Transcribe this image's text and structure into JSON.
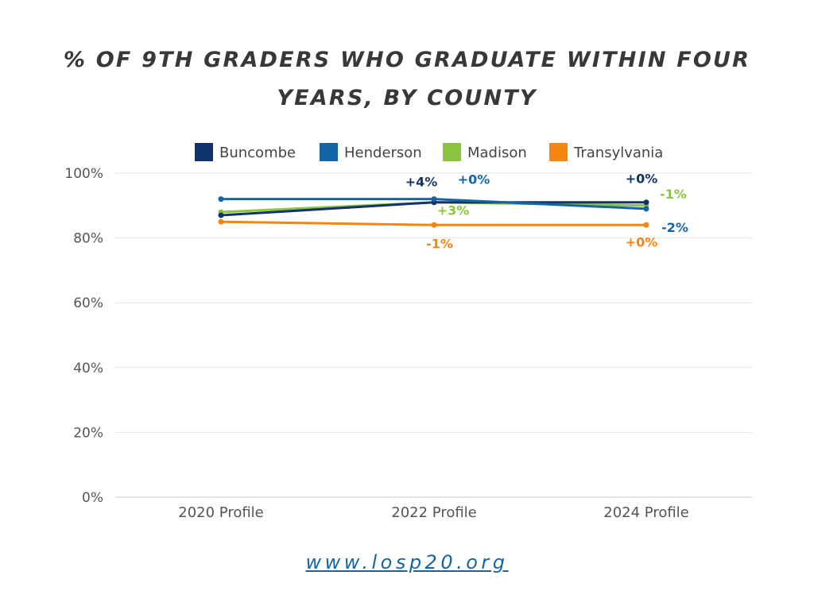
{
  "title": "% OF 9TH GRADERS WHO GRADUATE WITHIN FOUR YEARS, BY COUNTY",
  "footer": {
    "url_text": "www.losp20.org"
  },
  "chart_data": {
    "type": "line",
    "title": "% OF 9TH GRADERS WHO GRADUATE WITHIN FOUR YEARS, BY COUNTY",
    "xlabel": "",
    "ylabel": "",
    "categories": [
      "2020 Profile",
      "2022 Profile",
      "2024 Profile"
    ],
    "ylim": [
      0,
      100
    ],
    "yticks": [
      "0%",
      "20%",
      "40%",
      "60%",
      "80%",
      "100%"
    ],
    "ytick_values": [
      0,
      20,
      40,
      60,
      80,
      100
    ],
    "grid": true,
    "legend_position": "top",
    "series": [
      {
        "name": "Buncombe",
        "color": "#12326e",
        "values": [
          87,
          91,
          91
        ],
        "labels": [
          "",
          "+4%",
          "+0%"
        ]
      },
      {
        "name": "Henderson",
        "color": "#1565a6",
        "values": [
          92,
          92,
          89
        ],
        "labels": [
          "",
          "+0%",
          "-2%"
        ]
      },
      {
        "name": "Madison",
        "color": "#8bc53f",
        "values": [
          88,
          91,
          90
        ],
        "labels": [
          "",
          "+3%",
          "-1%"
        ]
      },
      {
        "name": "Transylvania",
        "color": "#f5850f",
        "values": [
          85,
          84,
          84
        ],
        "labels": [
          "",
          "-1%",
          "+0%"
        ]
      }
    ]
  }
}
